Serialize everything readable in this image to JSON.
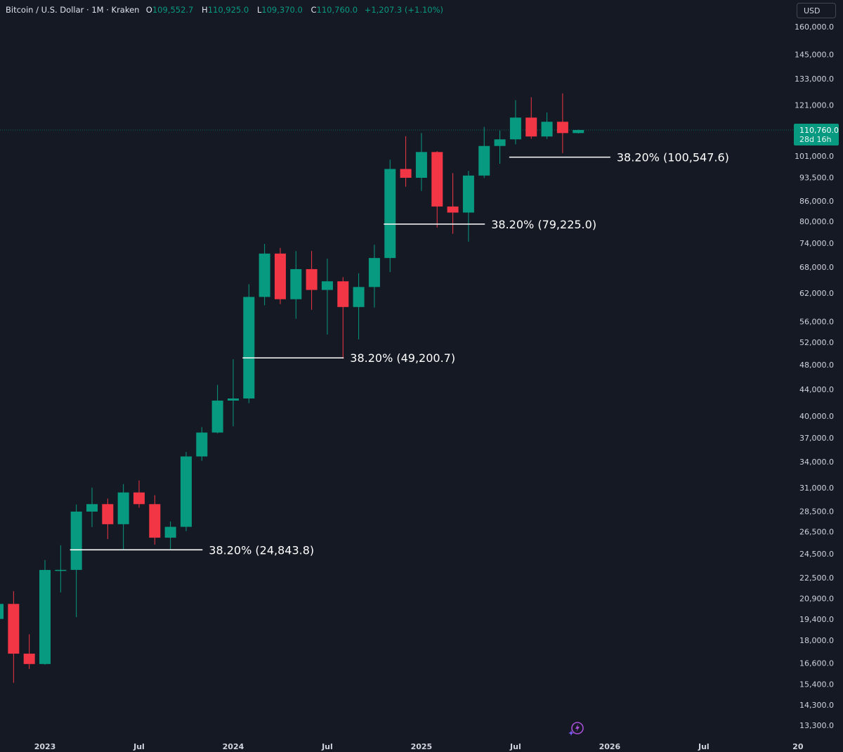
{
  "header": {
    "symbol": "Bitcoin / U.S. Dollar · 1M · Kraken",
    "o_label": "O",
    "o": "109,552.7",
    "h_label": "H",
    "h": "110,925.0",
    "l_label": "L",
    "l": "109,370.0",
    "c_label": "C",
    "c": "110,760.0",
    "change": "+1,207.3 (+1.10%)"
  },
  "currency_button": "USD",
  "colors": {
    "background": "#151924",
    "up": "#089981",
    "down": "#f23645",
    "text": "#d1d4dc"
  },
  "chart_data": {
    "type": "candlestick",
    "scale": "log",
    "ylim": [
      13300,
      160000
    ],
    "y_ticks": [
      "160,000.0",
      "145,000.0",
      "133,000.0",
      "121,000.0",
      "101,000.0",
      "93,500.0",
      "86,000.0",
      "80,000.0",
      "74,000.0",
      "68,000.0",
      "62,000.0",
      "56,000.0",
      "52,000.0",
      "48,000.0",
      "44,000.0",
      "40,000.0",
      "37,000.0",
      "34,000.0",
      "31,000.0",
      "28,500.0",
      "26,500.0",
      "24,500.0",
      "22,500.0",
      "20,900.0",
      "19,400.0",
      "18,000.0",
      "16,600.0",
      "15,400.0",
      "14,300.0",
      "13,300.0"
    ],
    "x_ticks": [
      {
        "label": "2023",
        "date": "2023-01"
      },
      {
        "label": "Jul",
        "date": "2023-07"
      },
      {
        "label": "2024",
        "date": "2024-01"
      },
      {
        "label": "Jul",
        "date": "2024-07"
      },
      {
        "label": "2025",
        "date": "2025-01"
      },
      {
        "label": "Jul",
        "date": "2025-07"
      },
      {
        "label": "2026",
        "date": "2026-01"
      },
      {
        "label": "Jul",
        "date": "2026-07"
      },
      {
        "label": "20",
        "date": "2027-01"
      }
    ],
    "candles": [
      [
        "2022-10",
        19423,
        20988,
        18190,
        20490
      ],
      [
        "2022-11",
        20490,
        21446,
        15476,
        17164
      ],
      [
        "2022-12",
        17164,
        18387,
        16256,
        16542
      ],
      [
        "2023-01",
        16542,
        23955,
        16499,
        23125
      ],
      [
        "2023-02",
        23125,
        25250,
        21351,
        23130
      ],
      [
        "2023-03",
        23130,
        29190,
        19549,
        28465
      ],
      [
        "2023-04",
        28465,
        31000,
        26942,
        29233
      ],
      [
        "2023-05",
        29233,
        29820,
        25811,
        27216
      ],
      [
        "2023-06",
        27216,
        31390,
        24797,
        30472
      ],
      [
        "2023-07",
        30472,
        31804,
        28861,
        29232
      ],
      [
        "2023-08",
        29232,
        30176,
        25300,
        25940
      ],
      [
        "2023-09",
        25940,
        27483,
        24900,
        26962
      ],
      [
        "2023-10",
        26962,
        35198,
        26554,
        34639
      ],
      [
        "2023-11",
        34639,
        38450,
        34110,
        37718
      ],
      [
        "2023-12",
        37718,
        44700,
        37600,
        42265
      ],
      [
        "2024-01",
        42265,
        48969,
        38555,
        42580
      ],
      [
        "2024-02",
        42580,
        63968,
        41880,
        61130
      ],
      [
        "2024-03",
        61130,
        73835,
        59323,
        71333
      ],
      [
        "2024-04",
        71333,
        72797,
        59600,
        60636
      ],
      [
        "2024-05",
        60636,
        71979,
        56555,
        67491
      ],
      [
        "2024-06",
        67491,
        71997,
        58402,
        62673
      ],
      [
        "2024-07",
        62673,
        70079,
        53485,
        64628
      ],
      [
        "2024-08",
        64628,
        65593,
        49050,
        58974
      ],
      [
        "2024-09",
        58974,
        66498,
        52550,
        63329
      ],
      [
        "2024-10",
        63329,
        73620,
        58864,
        70215
      ],
      [
        "2024-11",
        70215,
        99645,
        66790,
        96405
      ],
      [
        "2024-12",
        96405,
        108353,
        90500,
        93429
      ],
      [
        "2025-01",
        93429,
        109588,
        89164,
        102405
      ],
      [
        "2025-02",
        102405,
        102750,
        78258,
        84350
      ],
      [
        "2025-03",
        84350,
        95000,
        76555,
        82548
      ],
      [
        "2025-04",
        82548,
        95758,
        74434,
        94172
      ],
      [
        "2025-05",
        94172,
        111980,
        93377,
        104638
      ],
      [
        "2025-06",
        104638,
        110530,
        98200,
        107135
      ],
      [
        "2025-07",
        107135,
        123218,
        105271,
        115764
      ],
      [
        "2025-08",
        115764,
        124457,
        107350,
        108236
      ],
      [
        "2025-09",
        108236,
        117900,
        107270,
        114056
      ],
      [
        "2025-10",
        114056,
        126200,
        102000,
        109552
      ],
      [
        "2025-11",
        109552.7,
        110925,
        109370,
        110760
      ]
    ],
    "last_price": {
      "value": 110760,
      "label": "110,760.0",
      "countdown": "28d 16h"
    },
    "annotations": [
      {
        "label": "38.20% (24,843.8)",
        "price": 24843.8,
        "from": "2023-03",
        "to": "2023-11"
      },
      {
        "label": "38.20% (49,200.7)",
        "price": 49200.7,
        "from": "2024-02",
        "to": "2024-08"
      },
      {
        "label": "38.20% (79,225.0)",
        "price": 79225.0,
        "from": "2024-11",
        "to": "2025-05"
      },
      {
        "label": "38.20% (100,547.6)",
        "price": 100547.6,
        "from": "2025-07",
        "to": "2026-01"
      }
    ]
  }
}
